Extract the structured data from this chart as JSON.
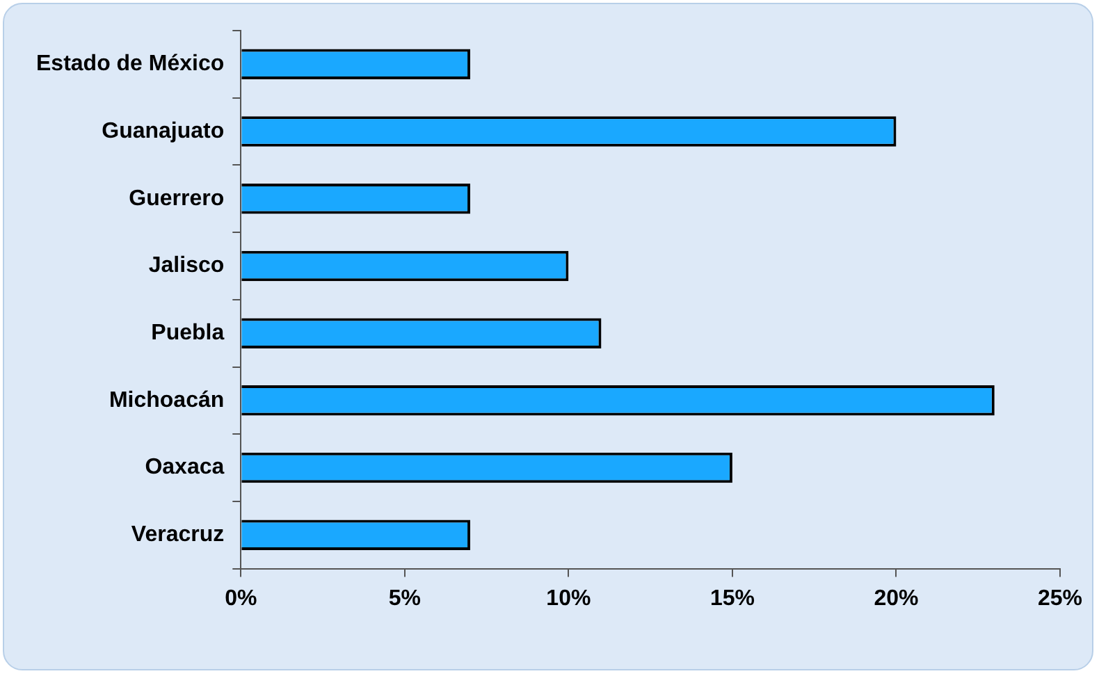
{
  "chart_data": {
    "type": "bar",
    "orientation": "horizontal",
    "categories": [
      "Estado de México",
      "Guanajuato",
      "Guerrero",
      "Jalisco",
      "Puebla",
      "Michoacán",
      "Oaxaca",
      "Veracruz"
    ],
    "values": [
      7,
      20,
      7,
      10,
      11,
      23,
      15,
      7
    ],
    "color": "#1aa8ff",
    "xlim": [
      0,
      25
    ],
    "xticks": [
      {
        "value": 0,
        "label": "0%"
      },
      {
        "value": 5,
        "label": "5%"
      },
      {
        "value": 10,
        "label": "10%"
      },
      {
        "value": 15,
        "label": "15%"
      },
      {
        "value": 20,
        "label": "20%"
      },
      {
        "value": 25,
        "label": "25%"
      }
    ],
    "grid": false,
    "legend": false
  }
}
